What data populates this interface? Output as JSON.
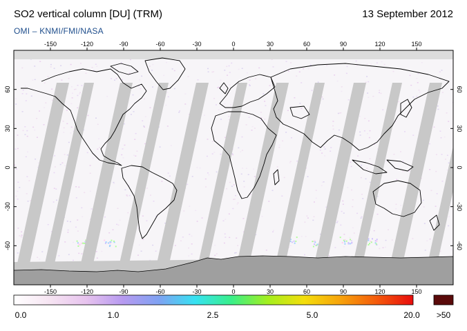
{
  "header": {
    "title": "SO2 vertical column [DU] (TRM)",
    "date": "13 September 2012",
    "credit": "OMI  –  KNMI/FMI/NASA"
  },
  "map": {
    "projection": "equirectangular",
    "lon_range": [
      -180,
      180
    ],
    "lat_range": [
      -90,
      90
    ],
    "lon_ticks": [
      -150,
      -120,
      -90,
      -60,
      -30,
      0,
      30,
      60,
      90,
      120,
      150
    ],
    "lat_ticks": [
      60,
      30,
      0,
      -30,
      -60
    ],
    "no_data_color": "#c8c8c8",
    "land_mask_color": "#9e9e9e",
    "coastline_color": "#000000"
  },
  "colorbar": {
    "labels": [
      "0.0",
      "1.0",
      "2.5",
      "5.0",
      "20.0"
    ],
    "overflow_label": ">50",
    "overflow_color": "#5a0a0a",
    "gradient_stops": [
      "#ffffff",
      "#f6e4f2",
      "#e7c3ee",
      "#b79af0",
      "#7fa2f2",
      "#36e2f2",
      "#39ef88",
      "#a4ef1e",
      "#f4de0c",
      "#f7a30c",
      "#f45a0c",
      "#e80d0d"
    ]
  }
}
